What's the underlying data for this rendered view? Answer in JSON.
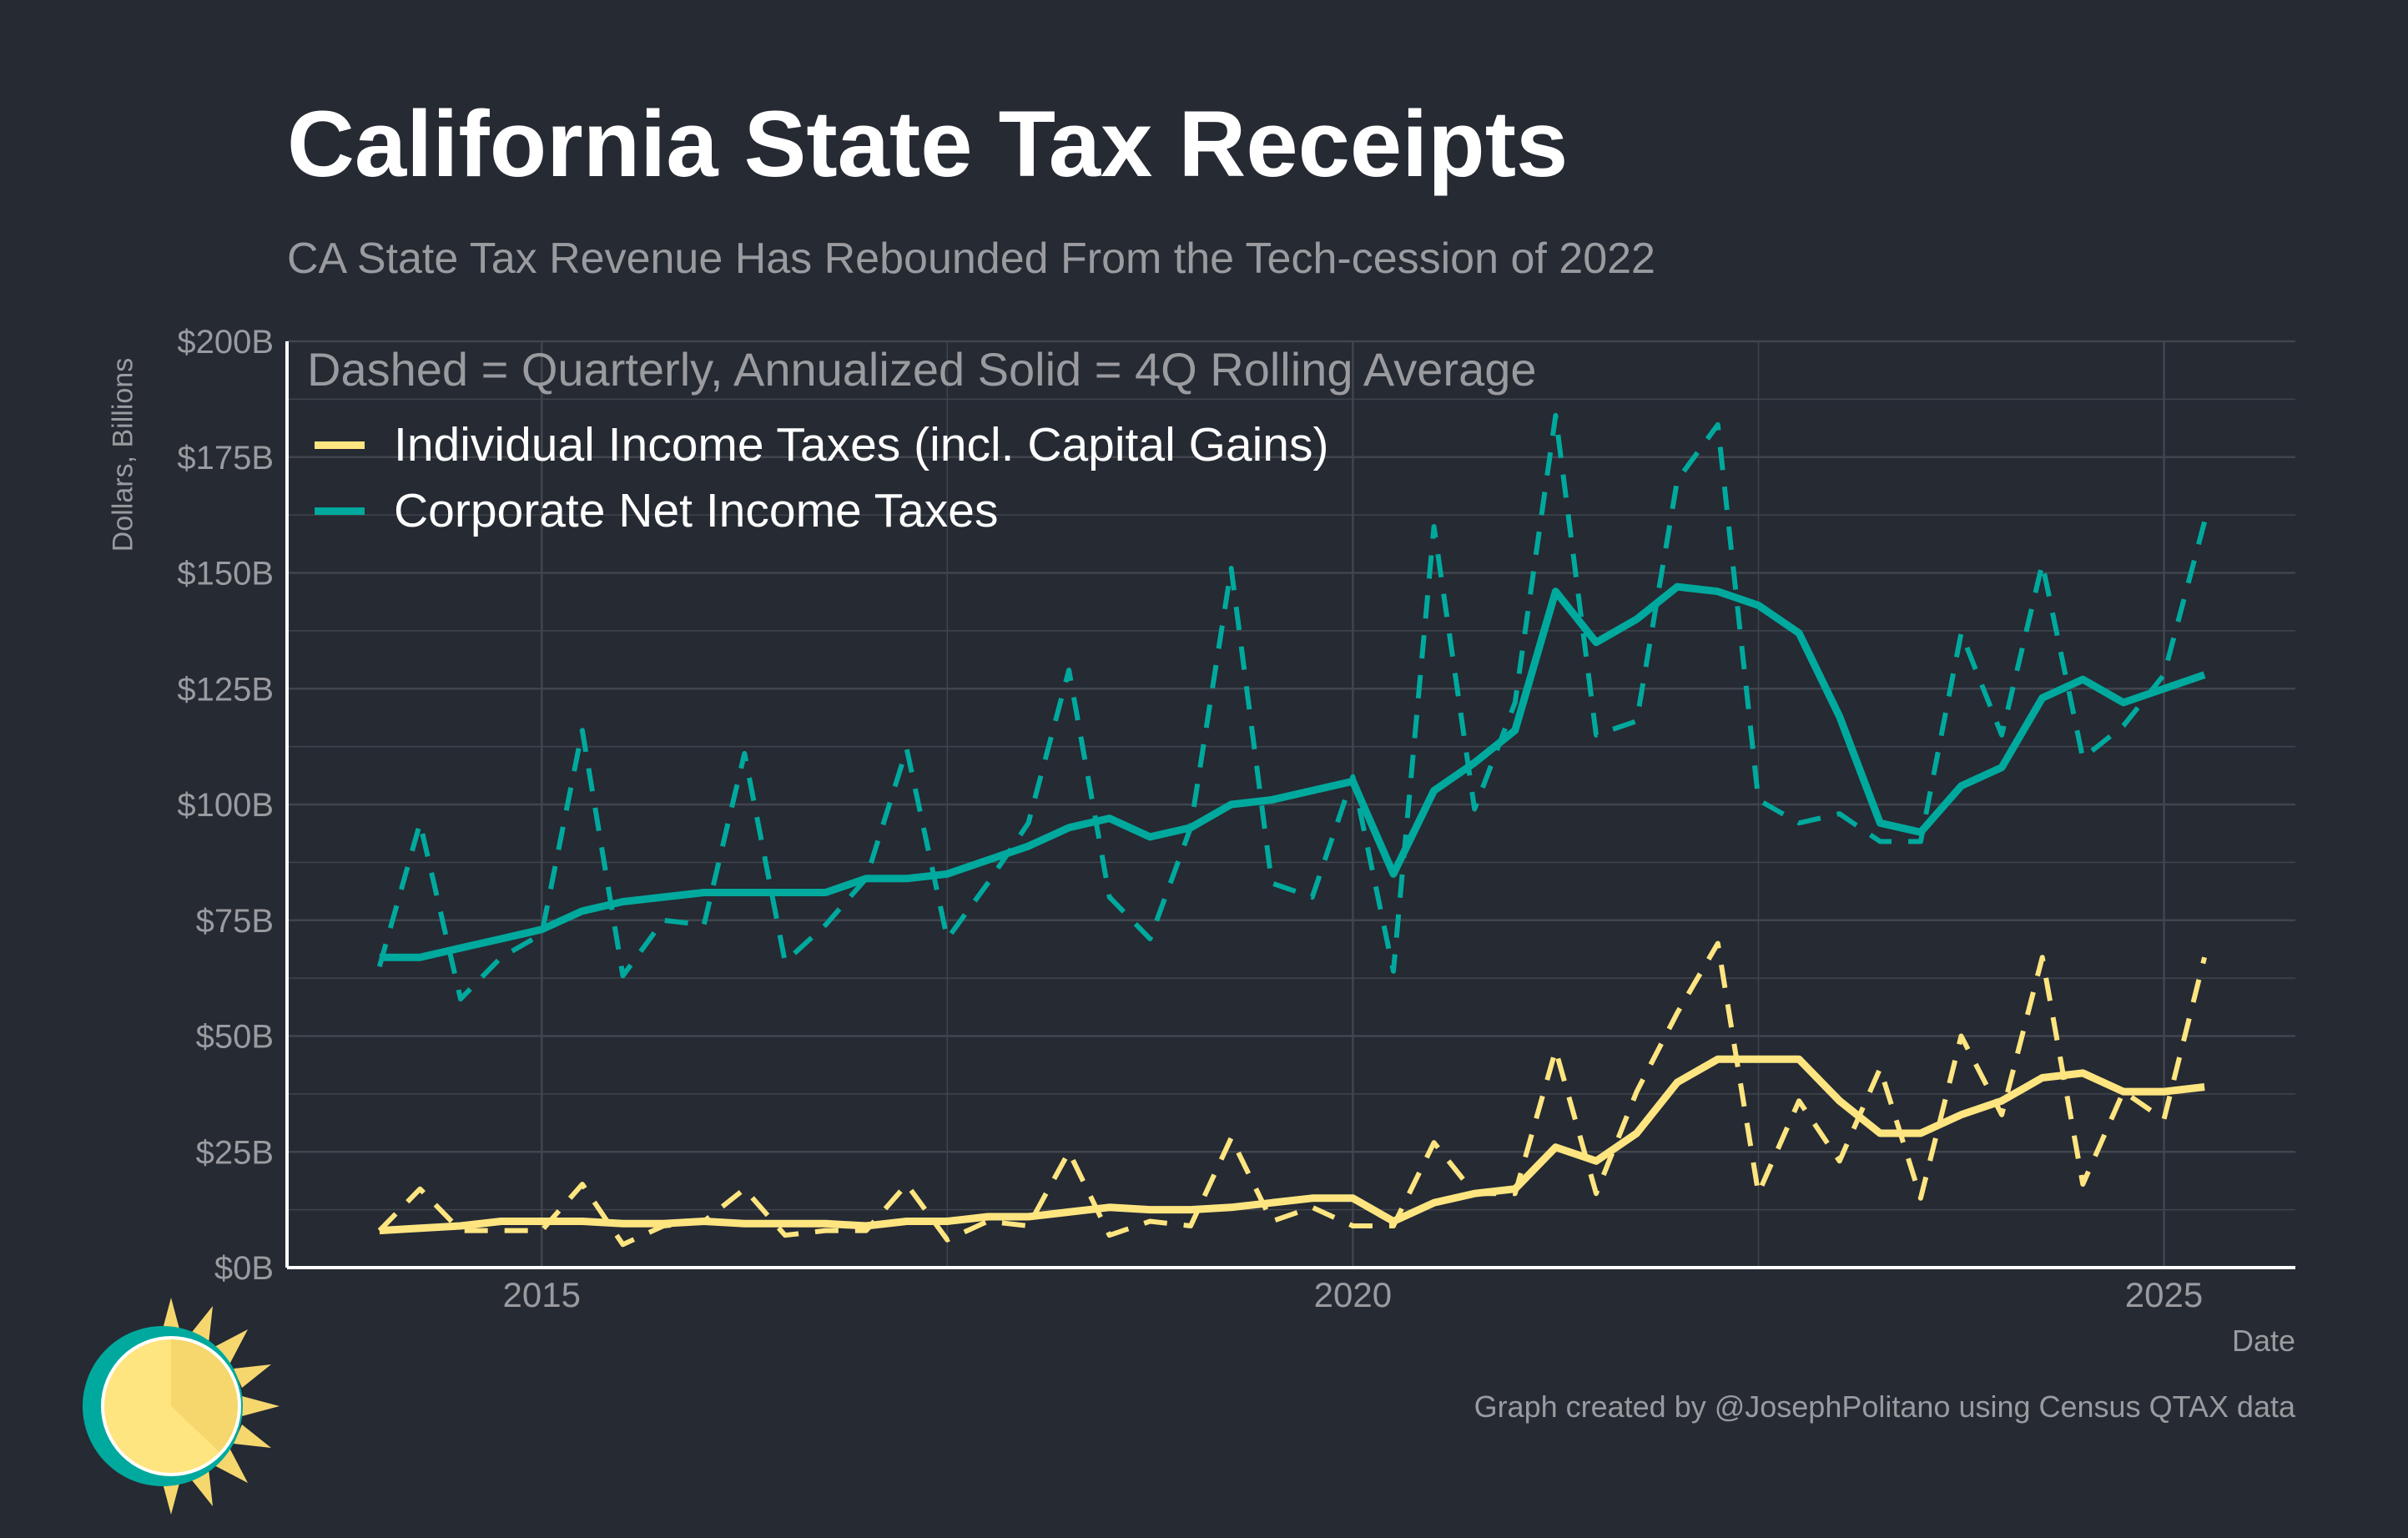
{
  "title": "California State Tax Receipts",
  "subtitle": "CA State Tax Revenue Has Rebounded From the Tech-cession of 2022",
  "credit": "Graph created by @JosephPolitano using Census QTAX data",
  "colors": {
    "background": "#252a33",
    "individual": "#ffe580",
    "corporate": "#00a99d",
    "grid": "#41454d"
  },
  "chart_data": {
    "type": "line",
    "title": "California State Tax Receipts",
    "xlabel": "Date",
    "ylabel": "Dollars, Billions",
    "annotation": "Dashed = Quarterly, Annualized Solid = 4Q Rolling Average",
    "xlim": [
      2013.43,
      2025.81
    ],
    "ylim": [
      0,
      200
    ],
    "x_ticks": [
      2015,
      2020,
      2025
    ],
    "x_tick_labels": [
      "2015",
      "2020",
      "2025"
    ],
    "y_ticks": [
      0,
      25,
      50,
      75,
      100,
      125,
      150,
      175,
      200
    ],
    "y_tick_labels": [
      "$0B",
      "$25B",
      "$50B",
      "$75B",
      "$100B",
      "$125B",
      "$150B",
      "$175B",
      "$200B"
    ],
    "grid": true,
    "legend_position": "top-left",
    "x_start": 2014.0,
    "x_step": 0.25,
    "series": [
      {
        "name": "Individual Income Taxes (incl. Capital Gains)",
        "key": "individual",
        "style": "solid",
        "values": [
          8,
          8.5,
          9,
          10,
          10,
          10,
          9.5,
          9.5,
          10,
          9.5,
          9.5,
          9.5,
          9,
          10,
          10,
          11,
          11,
          12,
          13,
          12.5,
          12.5,
          13,
          14,
          15,
          15,
          10,
          14,
          16,
          17,
          26,
          23,
          29,
          40,
          45,
          45,
          45,
          36,
          29,
          29,
          33,
          36,
          41,
          42,
          38,
          38,
          39
        ]
      },
      {
        "name": "Individual Income Taxes (quarterly, annualized)",
        "key": "individual",
        "style": "dashed",
        "values": [
          8,
          17,
          8,
          8,
          8,
          18,
          5,
          9,
          10,
          17,
          7,
          8,
          8,
          18,
          6,
          10,
          9,
          25,
          7,
          10,
          9,
          28,
          10,
          13,
          9,
          9,
          27,
          16,
          16,
          47,
          16,
          38,
          55,
          70,
          16,
          36,
          23,
          43,
          15,
          50,
          33,
          67,
          18,
          38,
          32,
          67
        ]
      },
      {
        "name": "Corporate Net Income Taxes",
        "key": "corporate",
        "style": "solid",
        "values": [
          67,
          67,
          69,
          71,
          73,
          77,
          79,
          80,
          81,
          81,
          81,
          81,
          84,
          84,
          85,
          88,
          91,
          95,
          97,
          93,
          95,
          100,
          101,
          103,
          105,
          85,
          103,
          109,
          116,
          146,
          135,
          140,
          147,
          146,
          143,
          137,
          119,
          96,
          94,
          104,
          108,
          123,
          127,
          122,
          125,
          128
        ]
      },
      {
        "name": "Corporate Net Income Taxes (quarterly, annualized)",
        "key": "corporate",
        "style": "dashed",
        "values": [
          65,
          96,
          58,
          67,
          72,
          116,
          63,
          75,
          74,
          111,
          66,
          74,
          84,
          112,
          71,
          83,
          96,
          129,
          80,
          71,
          95,
          151,
          83,
          80,
          106,
          64,
          160,
          99,
          122,
          184,
          115,
          118,
          170,
          182,
          101,
          96,
          98,
          92,
          92,
          137,
          115,
          152,
          110,
          117,
          128,
          161
        ]
      }
    ],
    "legend": [
      "Individual Income Taxes (incl. Capital Gains)",
      "Corporate Net Income Taxes"
    ]
  }
}
